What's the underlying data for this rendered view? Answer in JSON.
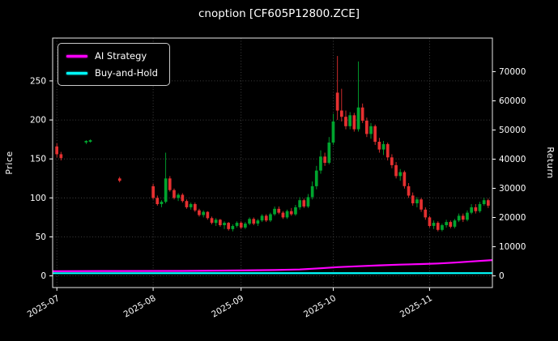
{
  "figure": {
    "background": "#000000",
    "text_color": "#ffffff",
    "grid_color": "#4d4d4d",
    "frame_color": "#e8e8e8"
  },
  "chart_data": {
    "type": "candlestick",
    "title": "cnoption [CF605P12800.ZCE]",
    "ylabel_left": "Price",
    "ylabel_right": "Return",
    "legend_position": "upper-left",
    "grid": "dotted",
    "xlim": [
      -1,
      104
    ],
    "ylim_left": [
      -15,
      305
    ],
    "ylim_right": [
      -4000,
      81500
    ],
    "yticks_left": [
      0,
      50,
      100,
      150,
      200,
      250
    ],
    "yticks_right": [
      0,
      10000,
      20000,
      30000,
      40000,
      50000,
      60000,
      70000
    ],
    "xticks": [
      {
        "pos": 0,
        "label": "2025-07"
      },
      {
        "pos": 23,
        "label": "2025-08"
      },
      {
        "pos": 44,
        "label": "2025-09"
      },
      {
        "pos": 66,
        "label": "2025-10"
      },
      {
        "pos": 89,
        "label": "2025-11"
      }
    ],
    "up_color": "#00a42e",
    "down_color": "#e53030",
    "candles": [
      [
        0,
        166,
        170,
        152,
        156
      ],
      [
        1,
        156,
        159,
        148,
        151
      ],
      [
        7,
        171,
        174,
        169,
        173
      ],
      [
        8,
        172,
        175,
        171,
        174
      ],
      [
        15,
        125,
        127,
        120,
        122
      ],
      [
        23,
        115,
        118,
        98,
        100
      ],
      [
        24,
        100,
        103,
        90,
        92
      ],
      [
        25,
        92,
        97,
        88,
        95
      ],
      [
        26,
        95,
        158,
        93,
        125
      ],
      [
        27,
        125,
        128,
        108,
        110
      ],
      [
        28,
        110,
        112,
        98,
        100
      ],
      [
        29,
        100,
        106,
        96,
        104
      ],
      [
        30,
        104,
        106,
        94,
        96
      ],
      [
        31,
        96,
        98,
        86,
        88
      ],
      [
        32,
        88,
        94,
        85,
        92
      ],
      [
        33,
        92,
        94,
        82,
        84
      ],
      [
        34,
        84,
        86,
        76,
        78
      ],
      [
        35,
        78,
        84,
        75,
        82
      ],
      [
        36,
        82,
        83,
        72,
        74
      ],
      [
        37,
        74,
        76,
        66,
        68
      ],
      [
        38,
        68,
        74,
        64,
        72
      ],
      [
        39,
        72,
        73,
        63,
        65
      ],
      [
        40,
        65,
        70,
        60,
        68
      ],
      [
        41,
        68,
        69,
        58,
        60
      ],
      [
        42,
        60,
        66,
        57,
        64
      ],
      [
        43,
        64,
        70,
        62,
        68
      ],
      [
        44,
        68,
        70,
        60,
        62
      ],
      [
        45,
        62,
        69,
        60,
        67
      ],
      [
        46,
        67,
        75,
        65,
        73
      ],
      [
        47,
        73,
        75,
        65,
        67
      ],
      [
        48,
        67,
        73,
        64,
        71
      ],
      [
        49,
        71,
        79,
        69,
        77
      ],
      [
        50,
        77,
        79,
        69,
        71
      ],
      [
        51,
        71,
        81,
        69,
        79
      ],
      [
        52,
        79,
        89,
        77,
        86
      ],
      [
        53,
        86,
        89,
        79,
        81
      ],
      [
        54,
        81,
        83,
        73,
        75
      ],
      [
        55,
        75,
        85,
        73,
        83
      ],
      [
        56,
        83,
        87,
        77,
        79
      ],
      [
        57,
        79,
        91,
        77,
        88
      ],
      [
        58,
        88,
        101,
        85,
        97
      ],
      [
        59,
        97,
        99,
        87,
        89
      ],
      [
        60,
        89,
        105,
        87,
        101
      ],
      [
        61,
        101,
        121,
        98,
        115
      ],
      [
        62,
        115,
        141,
        111,
        135
      ],
      [
        63,
        135,
        161,
        131,
        153
      ],
      [
        64,
        153,
        158,
        141,
        145
      ],
      [
        65,
        145,
        178,
        143,
        171
      ],
      [
        66,
        171,
        208,
        168,
        198
      ],
      [
        67,
        235,
        282,
        200,
        212
      ],
      [
        68,
        212,
        240,
        198,
        204
      ],
      [
        69,
        204,
        212,
        188,
        192
      ],
      [
        70,
        192,
        210,
        188,
        206
      ],
      [
        71,
        206,
        209,
        185,
        188
      ],
      [
        72,
        188,
        275,
        185,
        216
      ],
      [
        73,
        216,
        221,
        196,
        199
      ],
      [
        74,
        199,
        203,
        178,
        182
      ],
      [
        75,
        182,
        196,
        176,
        192
      ],
      [
        76,
        192,
        194,
        168,
        172
      ],
      [
        77,
        172,
        177,
        158,
        162
      ],
      [
        78,
        162,
        173,
        155,
        169
      ],
      [
        79,
        169,
        171,
        148,
        152
      ],
      [
        80,
        152,
        156,
        138,
        142
      ],
      [
        81,
        142,
        146,
        125,
        128
      ],
      [
        82,
        128,
        137,
        122,
        133
      ],
      [
        83,
        133,
        135,
        112,
        115
      ],
      [
        84,
        115,
        119,
        100,
        103
      ],
      [
        85,
        103,
        107,
        90,
        93
      ],
      [
        86,
        93,
        101,
        88,
        98
      ],
      [
        87,
        98,
        100,
        82,
        85
      ],
      [
        88,
        85,
        88,
        72,
        75
      ],
      [
        89,
        75,
        77,
        62,
        64
      ],
      [
        90,
        64,
        71,
        60,
        68
      ],
      [
        91,
        68,
        70,
        57,
        59
      ],
      [
        92,
        59,
        67,
        57,
        65
      ],
      [
        93,
        65,
        72,
        62,
        69
      ],
      [
        94,
        69,
        71,
        61,
        63
      ],
      [
        95,
        63,
        73,
        61,
        71
      ],
      [
        96,
        71,
        80,
        69,
        77
      ],
      [
        97,
        77,
        80,
        69,
        72
      ],
      [
        98,
        72,
        84,
        70,
        81
      ],
      [
        99,
        81,
        92,
        79,
        88
      ],
      [
        100,
        88,
        92,
        80,
        83
      ],
      [
        101,
        83,
        95,
        81,
        92
      ],
      [
        102,
        92,
        100,
        90,
        97
      ],
      [
        103,
        97,
        99,
        87,
        90
      ]
    ],
    "series": [
      {
        "name": "AI Strategy",
        "color": "#ff00ff",
        "axis": "right",
        "points": [
          [
            -1,
            1600
          ],
          [
            15,
            1650
          ],
          [
            30,
            1700
          ],
          [
            44,
            1850
          ],
          [
            52,
            2000
          ],
          [
            58,
            2200
          ],
          [
            63,
            2600
          ],
          [
            67,
            3000
          ],
          [
            72,
            3300
          ],
          [
            77,
            3600
          ],
          [
            82,
            3850
          ],
          [
            87,
            4050
          ],
          [
            91,
            4250
          ],
          [
            95,
            4550
          ],
          [
            99,
            4950
          ],
          [
            104,
            5400
          ]
        ]
      },
      {
        "name": "Buy-and-Hold",
        "color": "#00ffff",
        "axis": "right",
        "points": [
          [
            -1,
            900
          ],
          [
            104,
            950
          ]
        ]
      }
    ]
  }
}
